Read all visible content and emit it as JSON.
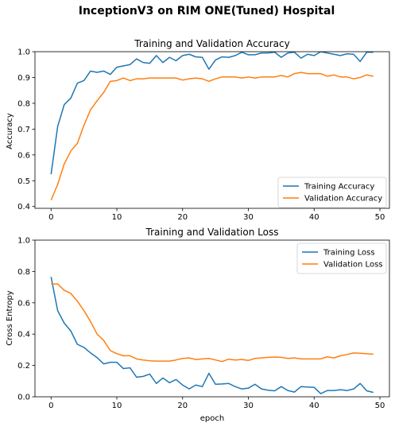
{
  "figure": {
    "suptitle": "InceptionV3 on RIM ONE(Tuned) Hospital"
  },
  "colors": {
    "series1": "#1f77b4",
    "series2": "#ff7f0e",
    "axis": "#000000",
    "legend_border": "#cccccc"
  },
  "chart_data": [
    {
      "type": "line",
      "title": "Training and Validation Accuracy",
      "xlabel": "",
      "ylabel": "Accuracy",
      "xlim": [
        -2.45,
        51.45
      ],
      "ylim": [
        0.393,
        1.0
      ],
      "xticks": [
        0,
        10,
        20,
        30,
        40,
        50
      ],
      "yticks": [
        0.4,
        0.5,
        0.6,
        0.7,
        0.8,
        0.9,
        1.0
      ],
      "ytick_labels": [
        "0.4",
        "0.5",
        "0.6",
        "0.7",
        "0.8",
        "0.9",
        "1.0"
      ],
      "grid": false,
      "legend_position": "lower-right",
      "x": [
        0,
        1,
        2,
        3,
        4,
        5,
        6,
        7,
        8,
        9,
        10,
        11,
        12,
        13,
        14,
        15,
        16,
        17,
        18,
        19,
        20,
        21,
        22,
        23,
        24,
        25,
        26,
        27,
        28,
        29,
        30,
        31,
        32,
        33,
        34,
        35,
        36,
        37,
        38,
        39,
        40,
        41,
        42,
        43,
        44,
        45,
        46,
        47,
        48,
        49
      ],
      "series": [
        {
          "name": "Training Accuracy",
          "color_key": "series1",
          "values": [
            0.525,
            0.71,
            0.795,
            0.82,
            0.878,
            0.888,
            0.925,
            0.92,
            0.925,
            0.912,
            0.94,
            0.945,
            0.95,
            0.972,
            0.958,
            0.955,
            0.985,
            0.958,
            0.978,
            0.965,
            0.985,
            0.99,
            0.98,
            0.978,
            0.932,
            0.968,
            0.98,
            0.978,
            0.985,
            0.998,
            0.988,
            0.988,
            0.995,
            0.995,
            0.998,
            0.978,
            0.995,
            0.998,
            0.975,
            0.99,
            0.985,
            1.0,
            0.995,
            0.99,
            0.985,
            0.992,
            0.99,
            0.962,
            0.998,
            0.998
          ]
        },
        {
          "name": "Validation Accuracy",
          "color_key": "series2",
          "values": [
            0.425,
            0.485,
            0.565,
            0.615,
            0.645,
            0.715,
            0.775,
            0.81,
            0.842,
            0.885,
            0.888,
            0.898,
            0.888,
            0.895,
            0.895,
            0.898,
            0.898,
            0.898,
            0.898,
            0.898,
            0.89,
            0.895,
            0.898,
            0.895,
            0.885,
            0.895,
            0.902,
            0.902,
            0.902,
            0.898,
            0.902,
            0.898,
            0.902,
            0.902,
            0.902,
            0.908,
            0.902,
            0.915,
            0.92,
            0.915,
            0.915,
            0.915,
            0.905,
            0.91,
            0.902,
            0.902,
            0.895,
            0.9,
            0.91,
            0.905
          ]
        }
      ]
    },
    {
      "type": "line",
      "title": "Training and Validation Loss",
      "xlabel": "epoch",
      "ylabel": "Cross Entropy",
      "xlim": [
        -2.45,
        51.45
      ],
      "ylim": [
        0.0,
        1.0
      ],
      "xticks": [
        0,
        10,
        20,
        30,
        40,
        50
      ],
      "yticks": [
        0.0,
        0.2,
        0.4,
        0.6,
        0.8,
        1.0
      ],
      "ytick_labels": [
        "0.0",
        "0.2",
        "0.4",
        "0.6",
        "0.8",
        "1.0"
      ],
      "grid": false,
      "legend_position": "upper-right",
      "x": [
        0,
        1,
        2,
        3,
        4,
        5,
        6,
        7,
        8,
        9,
        10,
        11,
        12,
        13,
        14,
        15,
        16,
        17,
        18,
        19,
        20,
        21,
        22,
        23,
        24,
        25,
        26,
        27,
        28,
        29,
        30,
        31,
        32,
        33,
        34,
        35,
        36,
        37,
        38,
        39,
        40,
        41,
        42,
        43,
        44,
        45,
        46,
        47,
        48,
        49
      ],
      "series": [
        {
          "name": "Training Loss",
          "color_key": "series1",
          "values": [
            0.765,
            0.55,
            0.47,
            0.42,
            0.335,
            0.315,
            0.28,
            0.25,
            0.21,
            0.22,
            0.22,
            0.18,
            0.185,
            0.125,
            0.13,
            0.145,
            0.085,
            0.12,
            0.09,
            0.11,
            0.075,
            0.05,
            0.075,
            0.065,
            0.15,
            0.08,
            0.082,
            0.085,
            0.065,
            0.05,
            0.055,
            0.08,
            0.05,
            0.042,
            0.038,
            0.065,
            0.04,
            0.03,
            0.065,
            0.062,
            0.06,
            0.02,
            0.04,
            0.04,
            0.045,
            0.04,
            0.05,
            0.085,
            0.038,
            0.028
          ]
        },
        {
          "name": "Validation Loss",
          "color_key": "series2",
          "values": [
            0.72,
            0.72,
            0.68,
            0.66,
            0.61,
            0.55,
            0.48,
            0.4,
            0.36,
            0.295,
            0.275,
            0.262,
            0.262,
            0.242,
            0.235,
            0.23,
            0.228,
            0.228,
            0.228,
            0.235,
            0.245,
            0.248,
            0.238,
            0.242,
            0.245,
            0.235,
            0.225,
            0.24,
            0.235,
            0.238,
            0.232,
            0.245,
            0.248,
            0.252,
            0.254,
            0.252,
            0.245,
            0.248,
            0.242,
            0.242,
            0.242,
            0.242,
            0.255,
            0.248,
            0.262,
            0.27,
            0.28,
            0.278,
            0.275,
            0.272
          ]
        }
      ]
    }
  ]
}
